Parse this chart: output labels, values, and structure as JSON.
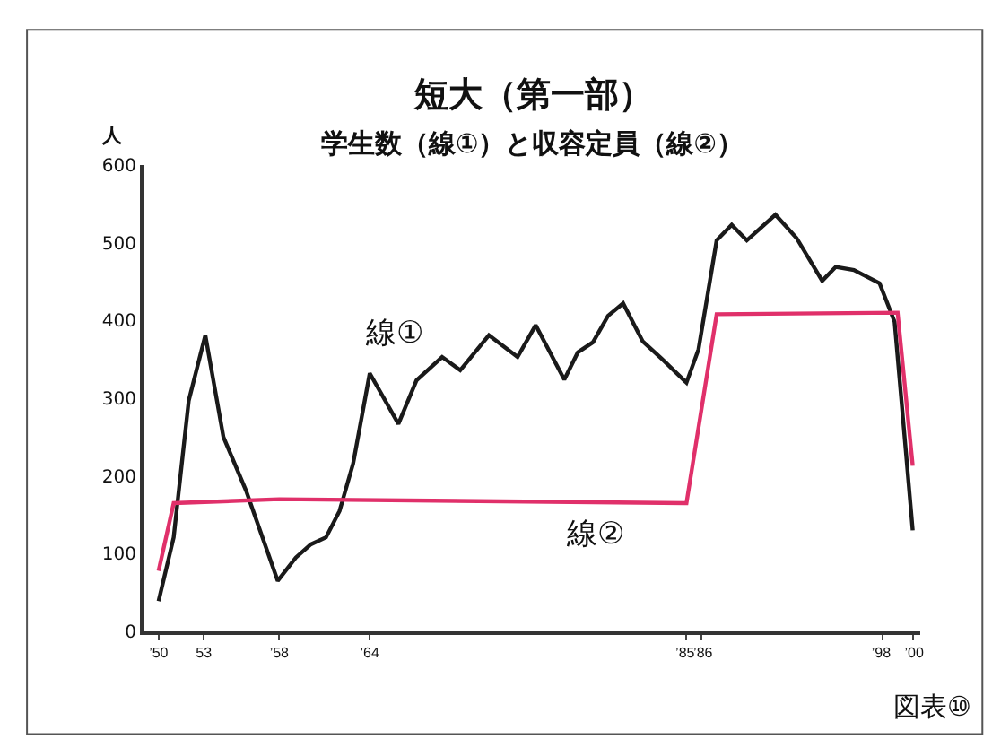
{
  "chart_data": {
    "type": "line",
    "title": "短大（第一部）",
    "subtitle": "学生数（線①）と収容定員（線②）",
    "ylabel": "人",
    "annotations": [
      "図表⑩"
    ],
    "series": [
      {
        "name": "線①",
        "color": "#1a1a1a",
        "x": [
          1950,
          1951,
          1952,
          1953.1,
          1954.3,
          1955.8,
          1957.9,
          1959.1,
          1960.1,
          1961.1,
          1962,
          1962.9,
          1964,
          1965.9,
          1967.1,
          1968.8,
          1970,
          1971.9,
          1973.8,
          1975,
          1976.9,
          1977.8,
          1978.8,
          1979.8,
          1980.8,
          1982.1,
          1983.4,
          1985,
          1985.8,
          1987,
          1988,
          1989,
          1990.9,
          1992.3,
          1994,
          1994.9,
          1996.1,
          1997.8,
          1998.8,
          2000
        ],
        "values": [
          39,
          121,
          297,
          381,
          250,
          181,
          65,
          95,
          112,
          121,
          155,
          216,
          332,
          267,
          323,
          353,
          336,
          381,
          353,
          394,
          324,
          359,
          372,
          406,
          422,
          373,
          350,
          320,
          363,
          503,
          523,
          503,
          536,
          506,
          451,
          469,
          465,
          448,
          398,
          130
        ]
      },
      {
        "name": "線②",
        "color": "#e0306a",
        "x": [
          1950,
          1951,
          1958,
          1985,
          1987,
          1999,
          2000
        ],
        "values": [
          78,
          165,
          170,
          165,
          408,
          410,
          213
        ]
      }
    ],
    "xlim": [
      1949,
      2000.5
    ],
    "ylim": [
      0,
      600
    ],
    "xticks": [
      {
        "value": 1950,
        "label": "’50"
      },
      {
        "value": 1953,
        "label": "53"
      },
      {
        "value": 1958,
        "label": "’58"
      },
      {
        "value": 1964,
        "label": "’64"
      },
      {
        "value": 1985,
        "label": "’85"
      },
      {
        "value": 1986,
        "label": "’86"
      },
      {
        "value": 1998,
        "label": "’98"
      },
      {
        "value": 2000,
        "label": "’00"
      }
    ],
    "yticks": [
      0,
      100,
      200,
      300,
      400,
      500,
      600
    ],
    "legend": false,
    "marker": "none",
    "line_style": "solid"
  }
}
